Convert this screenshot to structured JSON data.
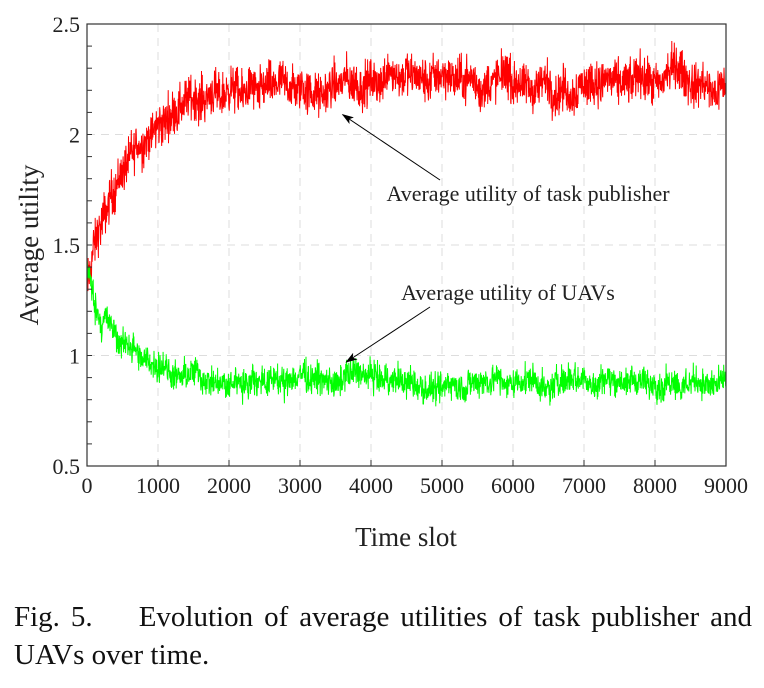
{
  "chart_data": {
    "type": "line",
    "xlabel": "Time slot",
    "ylabel": "Average utility",
    "xlim": [
      0,
      9000
    ],
    "ylim": [
      0.5,
      2.5
    ],
    "xticks": [
      0,
      1000,
      2000,
      3000,
      4000,
      5000,
      6000,
      7000,
      8000,
      9000
    ],
    "yticks": [
      0.5,
      1,
      1.5,
      2,
      2.5
    ],
    "ytick_labels": [
      "0.5",
      "1",
      "1.5",
      "2",
      "2.5"
    ],
    "grid": true,
    "series": [
      {
        "name": "Average utility of task publisher",
        "color": "#ff0000",
        "x": [
          0,
          100,
          200,
          500,
          800,
          1000,
          1500,
          2000,
          2500,
          3000,
          3500,
          4000,
          4500,
          5000,
          6000,
          7000,
          8000,
          8300,
          9000
        ],
        "y": [
          1.3,
          1.5,
          1.62,
          1.82,
          1.97,
          2.05,
          2.14,
          2.2,
          2.2,
          2.22,
          2.22,
          2.25,
          2.27,
          2.25,
          2.24,
          2.22,
          2.24,
          2.3,
          2.2
        ],
        "noise": 0.09
      },
      {
        "name": "Average utility of UAVs",
        "color": "#00ff00",
        "x": [
          0,
          100,
          200,
          500,
          800,
          1000,
          1500,
          2000,
          3000,
          4000,
          5000,
          6000,
          7000,
          8000,
          9000
        ],
        "y": [
          1.42,
          1.25,
          1.17,
          1.07,
          1.0,
          0.97,
          0.93,
          0.9,
          0.89,
          0.89,
          0.88,
          0.88,
          0.88,
          0.88,
          0.86
        ],
        "noise": 0.06
      }
    ],
    "annotations": [
      {
        "text": "Average utility of task publisher",
        "points_to": [
          3600,
          2.09
        ]
      },
      {
        "text": "Average utility of UAVs",
        "points_to": [
          3650,
          0.97
        ]
      }
    ]
  },
  "caption": {
    "number": "Fig. 5.",
    "text": "Evolution of average utilities of task publisher and UAVs over time."
  }
}
